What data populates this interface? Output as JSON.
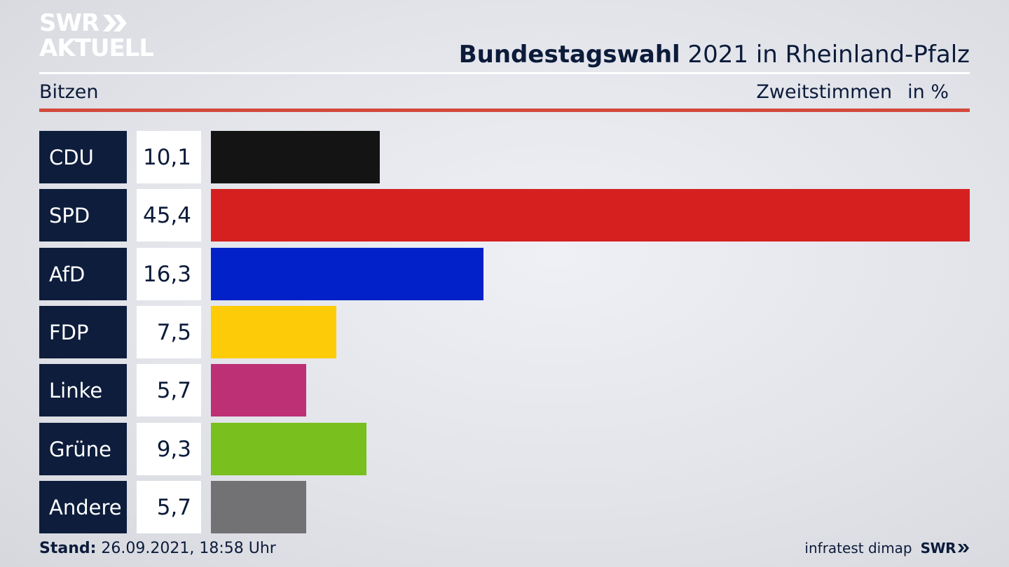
{
  "header": {
    "logo_top": "SWR",
    "logo_bottom": "AKTUELL",
    "title_bold": "Bundestagswahl",
    "title_rest": " 2021 in Rheinland-Pfalz",
    "region": "Bitzen",
    "measure": "Zweitstimmen",
    "unit": "in %"
  },
  "chart_data": {
    "type": "bar",
    "orientation": "horizontal",
    "categories": [
      "CDU",
      "SPD",
      "AfD",
      "FDP",
      "Linke",
      "Grüne",
      "Andere"
    ],
    "values": [
      10.1,
      45.4,
      16.3,
      7.5,
      5.7,
      9.3,
      5.7
    ],
    "value_labels": [
      "10,1",
      "45,4",
      "16,3",
      "7,5",
      "5,7",
      "9,3",
      "5,7"
    ],
    "colors": [
      "#141414",
      "#d62020",
      "#0321c8",
      "#fdcb08",
      "#bd3075",
      "#79bf1d",
      "#727274"
    ],
    "xlim": [
      0,
      45.4
    ],
    "grid": false
  },
  "footer": {
    "stand_label": "Stand:",
    "stand_value": " 26.09.2021, 18:58 Uhr",
    "source": "infratest dimap",
    "brand": "SWR"
  }
}
